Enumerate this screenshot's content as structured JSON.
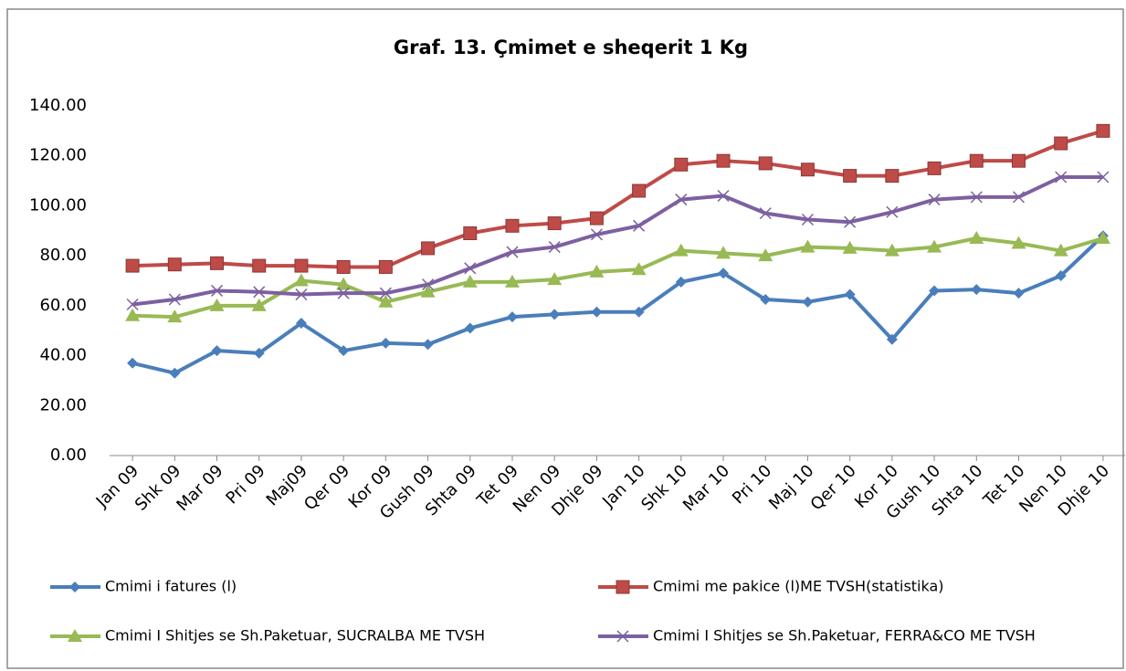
{
  "chart_data": {
    "type": "line",
    "title": "Graf. 13. Çmimet e sheqerit 1 Kg",
    "categories": [
      "Jan 09",
      "Shk 09",
      "Mar 09",
      "Pri 09",
      "Maj09",
      "Qer 09",
      "Kor 09",
      "Gush 09",
      "Shta 09",
      "Tet 09",
      "Nen 09",
      "Dhje 09",
      "Jan 10",
      "Shk 10",
      "Mar 10",
      "Pri 10",
      "Maj 10",
      "Qer 10",
      "Kor 10",
      "Gush 10",
      "Shta 10",
      "Tet 10",
      "Nen 10",
      "Dhje 10"
    ],
    "series": [
      {
        "name": "Cmimi i fatures (l)",
        "color": "#4a7ebb",
        "marker": "diamond",
        "values": [
          37,
          33,
          42,
          41,
          53,
          42,
          45,
          44.5,
          51,
          55.5,
          56.5,
          57.5,
          57.5,
          69.5,
          73,
          62.5,
          61.5,
          64.5,
          46.5,
          66,
          66.5,
          65,
          72,
          88
        ]
      },
      {
        "name": "Cmimi me pakice (l)ME TVSH(statistika)",
        "color": "#be4b48",
        "marker": "square",
        "values": [
          76,
          76.5,
          77,
          76,
          76,
          75.5,
          75.5,
          83,
          89,
          92,
          93,
          95,
          106,
          116.5,
          118,
          117,
          114.5,
          112,
          112,
          115,
          118,
          118,
          125,
          130
        ]
      },
      {
        "name": "Cmimi I Shitjes se Sh.Paketuar, SUCRALBA ME TVSH",
        "color": "#98b954",
        "marker": "triangle",
        "values": [
          56,
          55.5,
          60,
          60,
          70,
          68.5,
          61.5,
          65.5,
          69.5,
          69.5,
          70.5,
          73.5,
          74.5,
          82,
          81,
          80,
          83.5,
          83,
          82,
          83.5,
          87,
          85,
          82,
          87
        ]
      },
      {
        "name": "Cmimi I Shitjes se Sh.Paketuar, FERRA&CO ME TVSH",
        "color": "#7d60a0",
        "marker": "x",
        "values": [
          60.5,
          62.5,
          66,
          65.5,
          64.5,
          65,
          65,
          68.5,
          75,
          81.5,
          83.5,
          88.5,
          92,
          102.5,
          104,
          97,
          94.5,
          93.5,
          97.5,
          102.5,
          103.5,
          103.5,
          111.5,
          111.5
        ]
      }
    ],
    "ylim": [
      0,
      140
    ],
    "yticks": [
      {
        "value": 0,
        "label": "0.00"
      },
      {
        "value": 20,
        "label": "20.00"
      },
      {
        "value": 40,
        "label": "40.00"
      },
      {
        "value": 60,
        "label": "60.00"
      },
      {
        "value": 80,
        "label": "80.00"
      },
      {
        "value": 100,
        "label": "100.00"
      },
      {
        "value": 120,
        "label": "120.00"
      },
      {
        "value": 140,
        "label": "140.00"
      }
    ],
    "grid": false,
    "legend": "bottom"
  }
}
